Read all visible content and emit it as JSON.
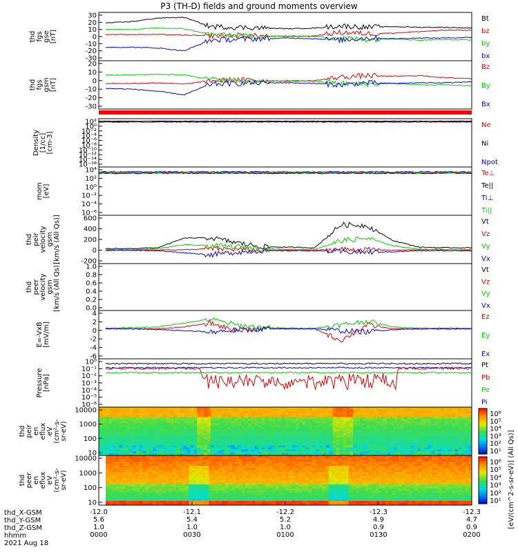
{
  "title": "P3 (TH-D) fields and ground moments overview",
  "colors": {
    "black": "#000000",
    "red": "#e00000",
    "green": "#00d000",
    "blue": "#0000e0"
  },
  "chart_data": [
    {
      "type": "line",
      "panel": "fgs_gse",
      "ylabel": [
        "thd",
        "fgs",
        "gse",
        "[nT]"
      ],
      "yticks": [
        "30",
        "20",
        "10",
        "0",
        "-10",
        "-20",
        "-30"
      ],
      "ylim": [
        -30,
        30
      ],
      "legend": [
        {
          "name": "Bt",
          "color": "#000000"
        },
        {
          "name": "bz",
          "color": "#e00000"
        },
        {
          "name": "by",
          "color": "#00d000"
        },
        {
          "name": "bx",
          "color": "#0000e0"
        }
      ],
      "series_levels": [
        {
          "name": "Bt",
          "values": [
            19,
            21,
            26,
            27,
            14,
            13,
            12,
            11,
            12,
            15,
            13,
            14,
            13,
            13,
            12
          ]
        },
        {
          "name": "bz",
          "values": [
            3,
            3,
            3,
            2,
            1,
            2,
            1,
            0,
            1,
            6,
            4,
            5,
            7,
            9,
            9
          ]
        },
        {
          "name": "by",
          "values": [
            10,
            10,
            12,
            11,
            3,
            1,
            0,
            1,
            0,
            -2,
            -4,
            -3,
            -5,
            -4,
            -5
          ]
        },
        {
          "name": "bx",
          "values": [
            -15,
            -15,
            -16,
            -20,
            -5,
            -4,
            -3,
            -2,
            -3,
            -5,
            -2,
            -3,
            -2,
            -2,
            -1
          ]
        }
      ]
    },
    {
      "type": "line",
      "panel": "fgs_gsm",
      "ylabel": [
        "thd",
        "fgs",
        "gsm",
        "[nT]"
      ],
      "yticks": [
        "20",
        "10",
        "0",
        "-10",
        "-20",
        "-30"
      ],
      "ylim": [
        -35,
        25
      ],
      "legend": [
        {
          "name": "Bz",
          "color": "#e00000"
        },
        {
          "name": "By",
          "color": "#00d000"
        },
        {
          "name": "Bx",
          "color": "#0000e0"
        }
      ],
      "series_levels": [
        {
          "name": "Bz",
          "values": [
            -3,
            -3,
            -2,
            -4,
            1,
            2,
            1,
            0,
            1,
            6,
            8,
            7,
            8,
            5,
            4
          ]
        },
        {
          "name": "By",
          "values": [
            9,
            9,
            10,
            9,
            3,
            1,
            0,
            1,
            0,
            -3,
            -4,
            -3,
            -5,
            -5,
            -6
          ]
        },
        {
          "name": "Bx",
          "values": [
            -10,
            -11,
            -14,
            -19,
            -4,
            -3,
            -2,
            -2,
            -3,
            -5,
            -2,
            -3,
            -2,
            -2,
            -1
          ]
        }
      ]
    },
    {
      "type": "line",
      "panel": "density",
      "ylabel": [
        "Density",
        "[1/cc]",
        "[cm-3]"
      ],
      "yticks": [
        "10²",
        "10⁰",
        "10⁻²",
        "10⁻⁴",
        "10⁻⁶",
        "10⁻⁸",
        "10⁻¹⁰",
        "10⁻¹²",
        "10⁻¹⁴",
        "10⁻¹⁶"
      ],
      "legend": [
        {
          "name": "Ne",
          "color": "#e00000"
        },
        {
          "name": "Ni",
          "color": "#000000"
        },
        {
          "name": "Npot",
          "color": "#0000e0"
        }
      ]
    },
    {
      "type": "line",
      "panel": "temperature",
      "ylabel": [
        "mom",
        "[eV]"
      ],
      "yticks": [
        "10⁴",
        "10²",
        "10⁰",
        "10⁻²",
        "10⁻⁴",
        "10⁻⁶"
      ],
      "legend": [
        {
          "name": "Te⊥",
          "color": "#e00000"
        },
        {
          "name": "Te||",
          "color": "#000000"
        },
        {
          "name": "Ti⊥",
          "color": "#0000e0"
        },
        {
          "name": "Ti||",
          "color": "#00d000"
        }
      ]
    },
    {
      "type": "line",
      "panel": "peir_velocity",
      "ylabel": [
        "thd",
        "peir",
        "velocity",
        "gsm",
        "[km/s (All Qs)]"
      ],
      "yticks": [
        "600",
        "400",
        "200",
        "0",
        "-200"
      ],
      "ylim": [
        -200,
        650
      ],
      "legend": [
        {
          "name": "Vt",
          "color": "#000000"
        },
        {
          "name": "Vz",
          "color": "#e00000"
        },
        {
          "name": "Vy",
          "color": "#00d000"
        },
        {
          "name": "Vx",
          "color": "#0000e0"
        }
      ],
      "series_levels": [
        {
          "name": "Vt",
          "values": [
            40,
            45,
            60,
            250,
            260,
            160,
            80,
            70,
            60,
            520,
            500,
            200,
            70,
            60,
            60
          ]
        },
        {
          "name": "Vz",
          "values": [
            10,
            10,
            20,
            20,
            40,
            30,
            10,
            10,
            10,
            30,
            20,
            10,
            20,
            20,
            10
          ]
        },
        {
          "name": "Vy",
          "values": [
            20,
            20,
            40,
            120,
            100,
            80,
            40,
            30,
            30,
            200,
            250,
            100,
            30,
            30,
            20
          ]
        },
        {
          "name": "Vx",
          "values": [
            10,
            10,
            0,
            -40,
            -80,
            -30,
            0,
            0,
            0,
            -20,
            -30,
            -20,
            0,
            0,
            0
          ]
        }
      ]
    },
    {
      "type": "line",
      "panel": "peer_velocity",
      "ylabel": [
        "thd",
        "peer",
        "velocity",
        "gsm",
        "[km/s (All Qs)]"
      ],
      "yticks": [
        "1.0",
        "0.8",
        "0.6",
        "0.4",
        "0.2",
        "0.0"
      ],
      "ylim": [
        0,
        1
      ],
      "legend": [
        {
          "name": "Vt",
          "color": "#000000"
        },
        {
          "name": "Vz",
          "color": "#e00000"
        },
        {
          "name": "Vy",
          "color": "#00d000"
        },
        {
          "name": "Vx",
          "color": "#0000e0"
        }
      ]
    },
    {
      "type": "line",
      "panel": "efield",
      "ylabel": [
        "E=-VxB",
        "[mV/m]"
      ],
      "yticks": [
        "4",
        "2",
        "0",
        "-2",
        "-4",
        "-6"
      ],
      "ylim": [
        -7,
        4
      ],
      "legend": [
        {
          "name": "Ez",
          "color": "#e00000"
        },
        {
          "name": "Ey",
          "color": "#00d000"
        },
        {
          "name": "Ex",
          "color": "#0000e0"
        }
      ],
      "series_levels": [
        {
          "name": "Ez",
          "values": [
            0,
            0,
            0,
            0.5,
            1.5,
            -0.5,
            0,
            0,
            0,
            -3,
            1,
            0,
            0,
            0,
            0
          ]
        },
        {
          "name": "Ey",
          "values": [
            0.2,
            0.3,
            0.5,
            1.5,
            2.5,
            1,
            0.3,
            0.2,
            0.2,
            1,
            2,
            0.5,
            0.2,
            0.2,
            0.2
          ]
        },
        {
          "name": "Ex",
          "values": [
            0,
            0,
            -0.2,
            -0.5,
            -0.8,
            -0.3,
            0,
            0,
            0,
            -0.5,
            -0.8,
            -0.2,
            0,
            0,
            0
          ]
        }
      ]
    },
    {
      "type": "line",
      "panel": "pressure",
      "ylabel": [
        "Pressure",
        "[nPa]"
      ],
      "yticks": [
        "10⁰",
        "10⁻¹",
        "10⁻²",
        "10⁻³",
        "10⁻⁴",
        "10⁻⁵",
        "10⁻⁶"
      ],
      "legend": [
        {
          "name": "Pt",
          "color": "#000000"
        },
        {
          "name": "Pb",
          "color": "#e00000"
        },
        {
          "name": "Pe",
          "color": "#00d000"
        },
        {
          "name": "Pi",
          "color": "#0000e0"
        }
      ]
    },
    {
      "type": "heatmap",
      "panel": "peir_eflux",
      "ylabel": [
        "thd",
        "peir",
        "en",
        "eflux",
        "eV",
        "(cm²-s-",
        "sr-eV)"
      ],
      "yticks": [
        "10000",
        "1000",
        "100",
        "10"
      ]
    },
    {
      "type": "heatmap",
      "panel": "peer_eflux",
      "ylabel": [
        "thd",
        "peer",
        "en",
        "eflux",
        "eV",
        "(cm²-s-",
        "sr-eV)"
      ],
      "yticks": [
        "10000",
        "1000",
        "100",
        "10"
      ]
    }
  ],
  "colorbar": {
    "label": "[eV/(cm^2-s-sr-eV)] (All Qs)]",
    "upper_ticks": [
      "10⁶",
      "10⁵",
      "10⁴",
      "10³",
      "10²",
      "10¹"
    ],
    "lower_ticks": [
      "10⁶",
      "10⁵",
      "10⁴",
      "10³",
      "10²",
      "10¹"
    ]
  },
  "x_axis": {
    "ticks": [
      {
        "x_gsm": "-12.0",
        "y_gsm": "5.6",
        "z_gsm": "1.0",
        "hhmm": "0000"
      },
      {
        "x_gsm": "-12.1",
        "y_gsm": "5.4",
        "z_gsm": "1.0",
        "hhmm": "0030"
      },
      {
        "x_gsm": "-12.2",
        "y_gsm": "5.2",
        "z_gsm": "1.0",
        "hhmm": "0100"
      },
      {
        "x_gsm": "-12.3",
        "y_gsm": "4.9",
        "z_gsm": "0.9",
        "hhmm": "0130"
      },
      {
        "x_gsm": "-12.3",
        "y_gsm": "4.7",
        "z_gsm": "0.9",
        "hhmm": "0200"
      }
    ],
    "row_labels": [
      "thd_X-GSM",
      "thd_Y-GSM",
      "thd_Z-GSM",
      "hhmm"
    ],
    "date": "2021 Aug 18"
  }
}
